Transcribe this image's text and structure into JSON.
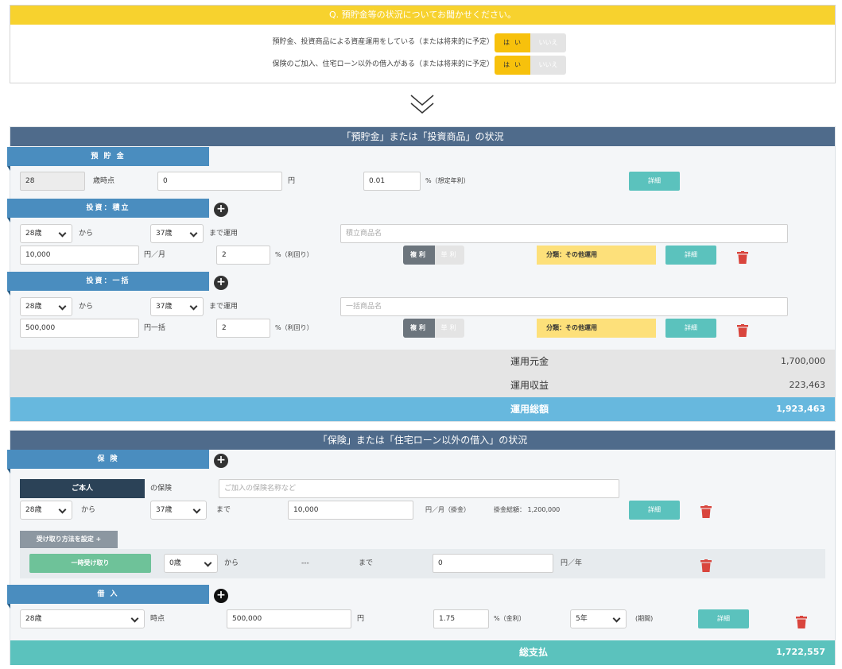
{
  "question": {
    "header": "Q. 預貯金等の状況についてお聞かせください。",
    "rows": [
      {
        "label": "預貯金、投資商品による資産運用をしている（または将来的に予定）",
        "yes": "はい",
        "no": "いいえ"
      },
      {
        "label": "保険のご加入、住宅ローン以外の借入がある（または将来的に予定）",
        "yes": "はい",
        "no": "いいえ"
      }
    ]
  },
  "assets": {
    "title": "「預貯金」または「投資商品」の状況",
    "savings": {
      "tab": "預 貯 金",
      "age": "28",
      "age_suffix": "歳時点",
      "amount": "0",
      "yen": "円",
      "rate": "0.01",
      "rate_suffix": "%（想定年利）",
      "detail": "詳細"
    },
    "installment": {
      "tab": "投資：積立",
      "from_age": "28歳",
      "from": "から",
      "to_age": "37歳",
      "to": "まで運用",
      "name_placeholder": "積立商品名",
      "amount": "10,000",
      "amount_unit": "円／月",
      "rate": "2",
      "rate_suffix": "%（利回り）",
      "compound": "複利",
      "simple": "単利",
      "category": "分類：その他運用",
      "detail": "詳細"
    },
    "lump": {
      "tab": "投資：一括",
      "from_age": "28歳",
      "from": "から",
      "to_age": "37歳",
      "to": "まで運用",
      "name_placeholder": "一括商品名",
      "amount": "500,000",
      "amount_unit": "円一括",
      "rate": "2",
      "rate_suffix": "%（利回り）",
      "compound": "複利",
      "simple": "単利",
      "category": "分類：その他運用",
      "detail": "詳細"
    },
    "summary": {
      "principal_label": "運用元金",
      "principal": "1,700,000",
      "gain_label": "運用収益",
      "gain": "223,463",
      "total_label": "運用総額",
      "total": "1,923,463"
    }
  },
  "liabilities": {
    "title": "「保険」または「住宅ローン以外の借入」の状況",
    "insurance": {
      "tab": "保 険",
      "insured": "ご本人",
      "insured_suffix": "の保険",
      "name_placeholder": "ご加入の保険名称など",
      "from_age": "28歳",
      "from": "から",
      "to_age": "37歳",
      "to": "まで",
      "premium": "10,000",
      "premium_unit": "円／月（掛金）",
      "total_premium": "掛金総額： 1,200,000",
      "detail": "詳細",
      "receive_setting": "受け取り方法を設定 +",
      "receive": {
        "type": "一時受け取り",
        "age": "0歳",
        "from": "から",
        "dash": "---",
        "to": "まで",
        "amount": "0",
        "unit": "円／年"
      }
    },
    "loan": {
      "tab": "借 入",
      "age": "28歳",
      "age_suffix": "時点",
      "amount": "500,000",
      "yen": "円",
      "rate": "1.75",
      "rate_suffix": "%（金利）",
      "period": "5年",
      "period_suffix": "(期間)",
      "detail": "詳細"
    },
    "summary": {
      "total_label": "総支払",
      "total": "1,722,557"
    }
  },
  "colors": {
    "yellow": "#f7d22e",
    "navy": "#4f6b8b",
    "tab_blue": "#4a8dbf",
    "teal": "#5bc2bd",
    "sky": "#67b8de",
    "trash_red": "#d9453d"
  }
}
